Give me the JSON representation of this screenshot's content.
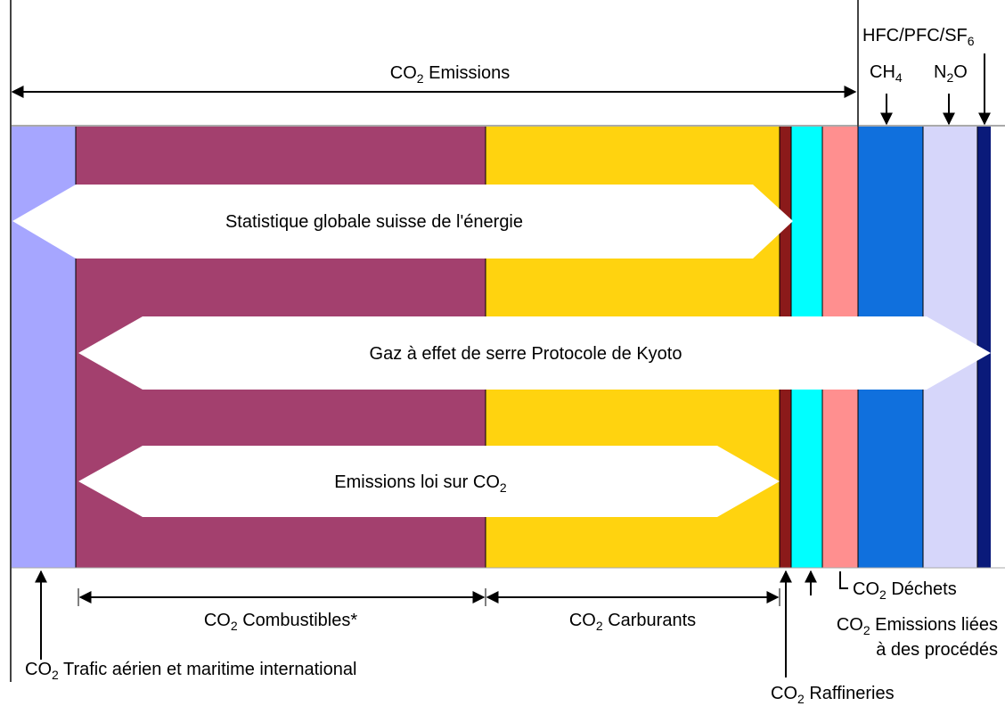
{
  "top_labels": {
    "co2_emissions": {
      "base": "CO",
      "sub": "2",
      "text": " Emissions"
    },
    "hfc_pfc_sf6": {
      "base": "HFC/PFC/SF",
      "sub": "6"
    },
    "ch4": {
      "base": "CH",
      "sub": "4"
    },
    "n2o": {
      "base": "N",
      "sub": "2",
      "text": "O"
    }
  },
  "arrows": {
    "energy_statistics": "Statistique globale suisse de l'énergie",
    "kyoto": "Gaz à effet de serre Protocole de Kyoto",
    "co2_law": {
      "base": "Emissions loi sur CO",
      "sub": "2"
    }
  },
  "bottom_labels": {
    "combustibles": {
      "base": "CO",
      "sub": "2",
      "text": " Combustibles*"
    },
    "carburants": {
      "base": "CO",
      "sub": "2",
      "text": " Carburants"
    },
    "air_sea": {
      "base": "CO",
      "sub": "2",
      "text": " Trafic aérien et maritime international"
    },
    "waste": {
      "base": "CO",
      "sub": "2",
      "text": " Déchets"
    },
    "process": {
      "base": "CO",
      "sub": "2",
      "text": " Emissions liées",
      "line2": "à des procédés"
    },
    "refineries": {
      "base": "CO",
      "sub": "2",
      "text": " Raffineries"
    }
  }
}
